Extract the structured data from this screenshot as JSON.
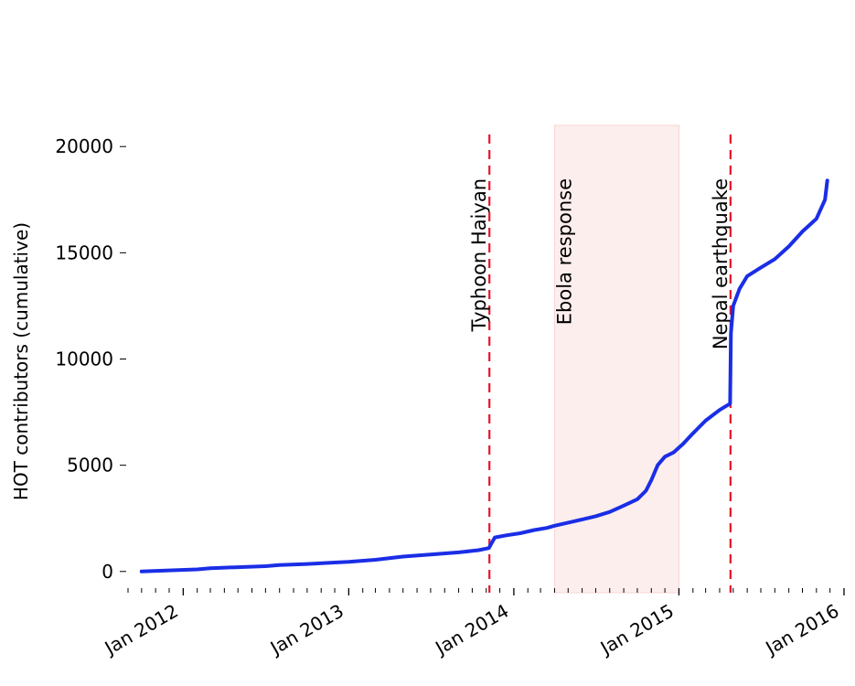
{
  "chart_data": {
    "type": "line",
    "title": "",
    "xlabel": "",
    "ylabel": "HOT contributors (cumulative)",
    "xlim": [
      "2011-09-01",
      "2016-01-01"
    ],
    "ylim": [
      -1000,
      21000
    ],
    "grid": false,
    "colors": {
      "line": "#1a2ee6",
      "event_line": "#e8132a",
      "shade": "#fdeeee"
    },
    "x_ticks": [
      {
        "date": "2012-01-01",
        "label": "Jan 2012"
      },
      {
        "date": "2013-01-01",
        "label": "Jan 2013"
      },
      {
        "date": "2014-01-01",
        "label": "Jan 2014"
      },
      {
        "date": "2015-01-01",
        "label": "Jan 2015"
      },
      {
        "date": "2016-01-01",
        "label": "Jan 2016"
      }
    ],
    "y_ticks": [
      {
        "value": 0,
        "label": "0"
      },
      {
        "value": 5000,
        "label": "5000"
      },
      {
        "value": 10000,
        "label": "10000"
      },
      {
        "value": 15000,
        "label": "15000"
      },
      {
        "value": 20000,
        "label": "20000"
      }
    ],
    "events": [
      {
        "label": "Typhoon Haiyan",
        "date": "2013-11-08",
        "style": "dashed-line"
      },
      {
        "label": "Ebola response",
        "start": "2014-04-01",
        "end": "2015-01-01",
        "style": "shaded-span"
      },
      {
        "label": "Nepal earthquake",
        "date": "2015-04-25",
        "style": "dashed-line"
      }
    ],
    "series": [
      {
        "x": [
          "2011-10-01",
          "2011-12-01",
          "2012-02-01",
          "2012-03-01",
          "2012-05-01",
          "2012-07-01",
          "2012-08-01",
          "2012-10-01",
          "2012-12-01",
          "2013-01-01",
          "2013-03-01",
          "2013-05-01",
          "2013-07-01",
          "2013-09-01",
          "2013-10-15",
          "2013-11-07",
          "2013-11-12",
          "2013-11-20",
          "2013-12-15",
          "2014-01-15",
          "2014-02-15",
          "2014-03-15",
          "2014-04-01",
          "2014-05-01",
          "2014-06-01",
          "2014-07-01",
          "2014-08-01",
          "2014-09-01",
          "2014-10-01",
          "2014-10-20",
          "2014-11-01",
          "2014-11-15",
          "2014-12-01",
          "2014-12-20",
          "2015-01-10",
          "2015-02-01",
          "2015-03-01",
          "2015-04-01",
          "2015-04-24",
          "2015-04-26",
          "2015-05-01",
          "2015-05-15",
          "2015-06-01",
          "2015-07-01",
          "2015-08-01",
          "2015-09-01",
          "2015-10-01",
          "2015-11-01",
          "2015-11-20",
          "2015-11-25"
        ],
        "values": [
          0,
          50,
          100,
          150,
          200,
          250,
          300,
          350,
          420,
          450,
          550,
          700,
          800,
          900,
          1000,
          1100,
          1300,
          1600,
          1700,
          1800,
          1950,
          2050,
          2150,
          2300,
          2450,
          2600,
          2800,
          3100,
          3400,
          3800,
          4300,
          5000,
          5400,
          5600,
          6000,
          6500,
          7100,
          7600,
          7900,
          11200,
          12500,
          13300,
          13900,
          14300,
          14700,
          15300,
          16000,
          16600,
          17500,
          18400
        ]
      }
    ]
  }
}
